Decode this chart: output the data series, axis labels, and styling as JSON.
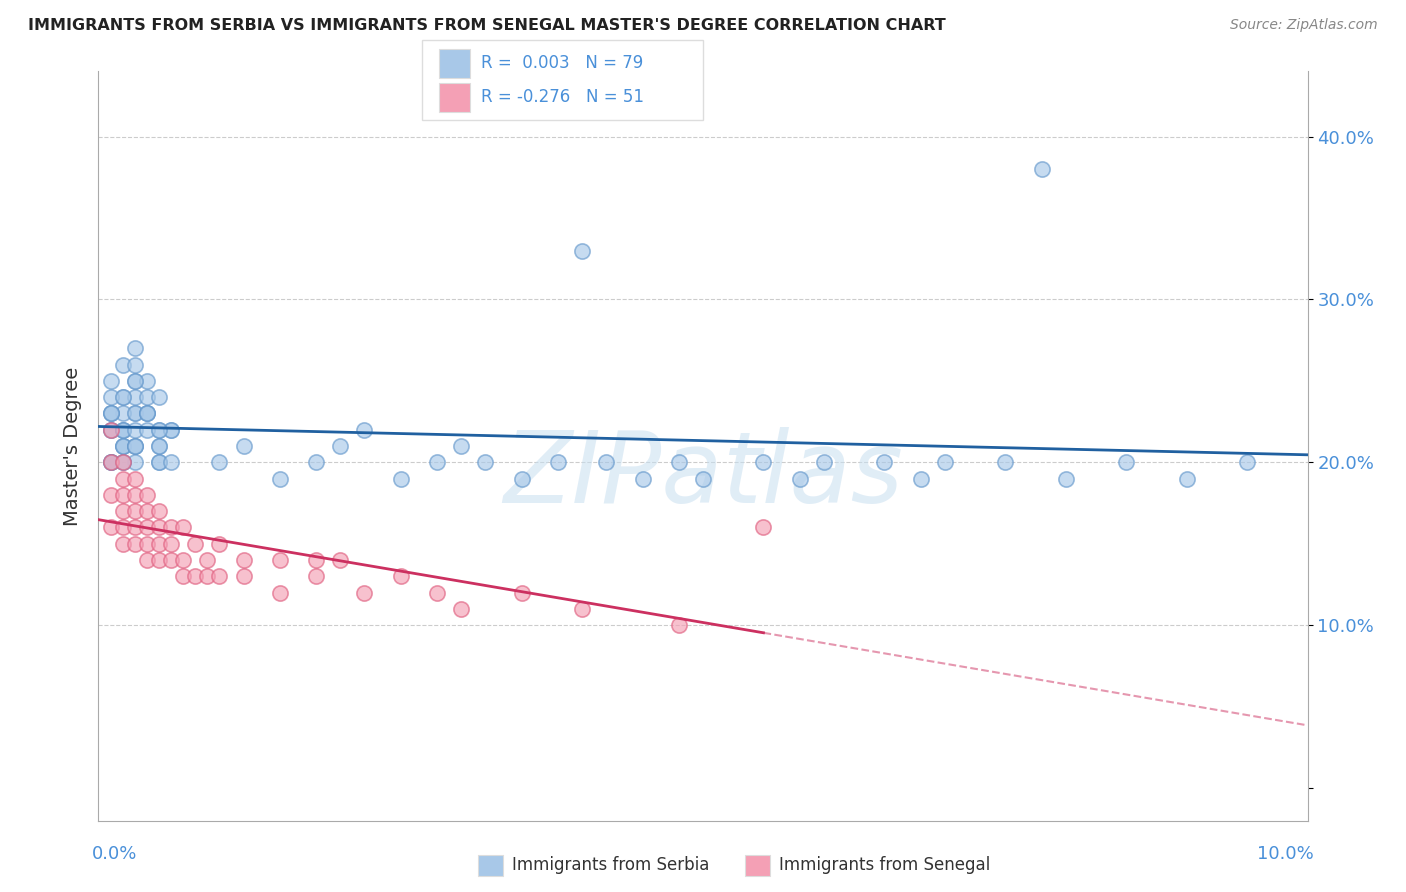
{
  "title": "IMMIGRANTS FROM SERBIA VS IMMIGRANTS FROM SENEGAL MASTER'S DEGREE CORRELATION CHART",
  "source": "Source: ZipAtlas.com",
  "ylabel": "Master's Degree",
  "y_ticks": [
    0.0,
    0.1,
    0.2,
    0.3,
    0.4
  ],
  "y_tick_labels": [
    "",
    "10.0%",
    "20.0%",
    "30.0%",
    "40.0%"
  ],
  "xlim": [
    0.0,
    0.1
  ],
  "ylim": [
    -0.02,
    0.44
  ],
  "legend_r1": "R =  0.003",
  "legend_n1": "N = 79",
  "legend_r2": "R = -0.276",
  "legend_n2": "N = 51",
  "blue_color": "#a8c8e8",
  "pink_color": "#f4a0b5",
  "blue_fill": "#a8c8e8",
  "pink_fill": "#f4a0b5",
  "blue_edge": "#6699cc",
  "pink_edge": "#e06080",
  "blue_line_color": "#2060a0",
  "pink_line_color": "#cc3060",
  "serbia_x": [
    0.001,
    0.002,
    0.001,
    0.002,
    0.003,
    0.001,
    0.002,
    0.003,
    0.002,
    0.001,
    0.003,
    0.002,
    0.001,
    0.002,
    0.003,
    0.001,
    0.002,
    0.001,
    0.002,
    0.003,
    0.001,
    0.002,
    0.003,
    0.001,
    0.002,
    0.003,
    0.002,
    0.003,
    0.001,
    0.002,
    0.004,
    0.003,
    0.005,
    0.004,
    0.003,
    0.004,
    0.005,
    0.003,
    0.004,
    0.005,
    0.006,
    0.005,
    0.004,
    0.005,
    0.006,
    0.005,
    0.004,
    0.003,
    0.006,
    0.005,
    0.01,
    0.012,
    0.015,
    0.018,
    0.02,
    0.022,
    0.025,
    0.028,
    0.03,
    0.032,
    0.035,
    0.038,
    0.04,
    0.042,
    0.045,
    0.048,
    0.05,
    0.055,
    0.058,
    0.06,
    0.065,
    0.068,
    0.07,
    0.075,
    0.08,
    0.085,
    0.09,
    0.095,
    0.078
  ],
  "serbia_y": [
    0.22,
    0.24,
    0.2,
    0.26,
    0.23,
    0.25,
    0.21,
    0.27,
    0.22,
    0.24,
    0.2,
    0.23,
    0.22,
    0.21,
    0.25,
    0.2,
    0.22,
    0.23,
    0.21,
    0.24,
    0.2,
    0.22,
    0.21,
    0.23,
    0.2,
    0.22,
    0.24,
    0.21,
    0.23,
    0.2,
    0.25,
    0.23,
    0.22,
    0.24,
    0.26,
    0.23,
    0.21,
    0.25,
    0.22,
    0.2,
    0.22,
    0.21,
    0.23,
    0.2,
    0.22,
    0.24,
    0.23,
    0.21,
    0.2,
    0.22,
    0.2,
    0.21,
    0.19,
    0.2,
    0.21,
    0.22,
    0.19,
    0.2,
    0.21,
    0.2,
    0.19,
    0.2,
    0.33,
    0.2,
    0.19,
    0.2,
    0.19,
    0.2,
    0.19,
    0.2,
    0.2,
    0.19,
    0.2,
    0.2,
    0.19,
    0.2,
    0.19,
    0.2,
    0.38
  ],
  "senegal_x": [
    0.001,
    0.001,
    0.001,
    0.001,
    0.002,
    0.002,
    0.002,
    0.002,
    0.002,
    0.002,
    0.003,
    0.003,
    0.003,
    0.003,
    0.003,
    0.004,
    0.004,
    0.004,
    0.004,
    0.004,
    0.005,
    0.005,
    0.005,
    0.005,
    0.006,
    0.006,
    0.006,
    0.007,
    0.007,
    0.007,
    0.008,
    0.008,
    0.009,
    0.009,
    0.01,
    0.01,
    0.012,
    0.012,
    0.015,
    0.015,
    0.018,
    0.018,
    0.02,
    0.022,
    0.025,
    0.028,
    0.03,
    0.035,
    0.04,
    0.048,
    0.055
  ],
  "senegal_y": [
    0.18,
    0.22,
    0.16,
    0.2,
    0.17,
    0.19,
    0.15,
    0.18,
    0.16,
    0.2,
    0.17,
    0.15,
    0.18,
    0.16,
    0.19,
    0.16,
    0.14,
    0.17,
    0.15,
    0.18,
    0.16,
    0.14,
    0.17,
    0.15,
    0.14,
    0.16,
    0.15,
    0.14,
    0.16,
    0.13,
    0.15,
    0.13,
    0.14,
    0.13,
    0.15,
    0.13,
    0.14,
    0.13,
    0.14,
    0.12,
    0.14,
    0.13,
    0.14,
    0.12,
    0.13,
    0.12,
    0.11,
    0.12,
    0.11,
    0.1,
    0.16
  ],
  "watermark_text": "ZIPatlas",
  "background_color": "#ffffff",
  "grid_color": "#cccccc",
  "spine_color": "#aaaaaa",
  "tick_color": "#4a90d9",
  "ylabel_color": "#333333",
  "title_color": "#222222",
  "source_color": "#888888",
  "legend_text_color": "#4a90d9",
  "legend_box_color": "#dddddd",
  "bottom_legend_color": "#333333"
}
